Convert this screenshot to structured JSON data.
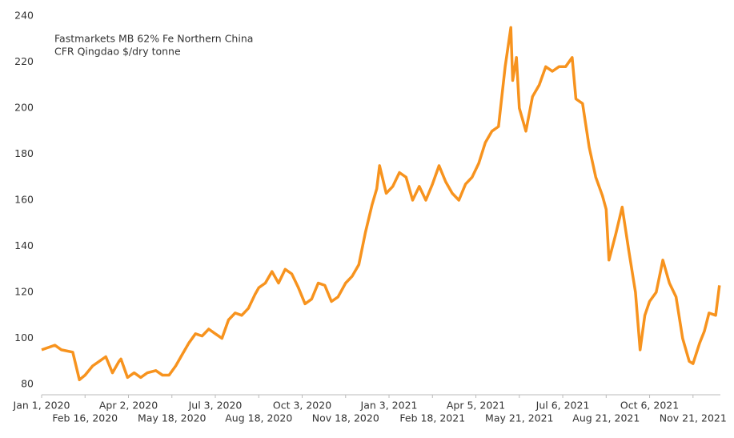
{
  "chart_data": {
    "type": "line",
    "title": "Fastmarkets MB 62% Fe Northern China",
    "subtitle": "CFR Qingdao $/dry tonne",
    "x": [
      "2020-01-01",
      "2020-01-15",
      "2020-01-22",
      "2020-02-03",
      "2020-02-10",
      "2020-02-16",
      "2020-02-24",
      "2020-03-02",
      "2020-03-09",
      "2020-03-16",
      "2020-03-23",
      "2020-03-25",
      "2020-04-01",
      "2020-04-08",
      "2020-04-15",
      "2020-04-22",
      "2020-05-01",
      "2020-05-08",
      "2020-05-15",
      "2020-05-22",
      "2020-05-29",
      "2020-06-05",
      "2020-06-12",
      "2020-06-19",
      "2020-06-26",
      "2020-07-03",
      "2020-07-10",
      "2020-07-17",
      "2020-07-24",
      "2020-07-31",
      "2020-08-07",
      "2020-08-14",
      "2020-08-18",
      "2020-08-25",
      "2020-09-01",
      "2020-09-08",
      "2020-09-15",
      "2020-09-22",
      "2020-09-29",
      "2020-10-06",
      "2020-10-13",
      "2020-10-20",
      "2020-10-27",
      "2020-11-03",
      "2020-11-10",
      "2020-11-18",
      "2020-11-25",
      "2020-12-02",
      "2020-12-09",
      "2020-12-16",
      "2020-12-21",
      "2020-12-24",
      "2020-12-31",
      "2021-01-07",
      "2021-01-14",
      "2021-01-21",
      "2021-01-28",
      "2021-02-04",
      "2021-02-11",
      "2021-02-18",
      "2021-02-25",
      "2021-03-04",
      "2021-03-11",
      "2021-03-18",
      "2021-03-25",
      "2021-04-01",
      "2021-04-08",
      "2021-04-15",
      "2021-04-22",
      "2021-04-29",
      "2021-05-06",
      "2021-05-12",
      "2021-05-14",
      "2021-05-18",
      "2021-05-21",
      "2021-05-28",
      "2021-06-04",
      "2021-06-11",
      "2021-06-18",
      "2021-06-25",
      "2021-07-02",
      "2021-07-09",
      "2021-07-16",
      "2021-07-20",
      "2021-07-27",
      "2021-08-03",
      "2021-08-10",
      "2021-08-17",
      "2021-08-21",
      "2021-08-24",
      "2021-08-31",
      "2021-09-07",
      "2021-09-14",
      "2021-09-21",
      "2021-09-26",
      "2021-10-01",
      "2021-10-06",
      "2021-10-13",
      "2021-10-20",
      "2021-10-27",
      "2021-11-03",
      "2021-11-10",
      "2021-11-17",
      "2021-11-21",
      "2021-11-28",
      "2021-12-03",
      "2021-12-08",
      "2021-12-15",
      "2021-12-19"
    ],
    "series": [
      {
        "color": "#f7931e",
        "values": [
          95,
          97,
          95,
          94,
          82,
          84,
          88,
          90,
          92,
          85,
          90,
          91,
          83,
          85,
          83,
          85,
          86,
          84,
          84,
          88,
          93,
          98,
          102,
          101,
          104,
          102,
          100,
          108,
          111,
          110,
          113,
          119,
          122,
          124,
          129,
          124,
          130,
          128,
          122,
          115,
          117,
          124,
          123,
          116,
          118,
          124,
          127,
          132,
          146,
          158,
          165,
          175,
          163,
          166,
          172,
          170,
          160,
          166,
          160,
          167,
          175,
          168,
          163,
          160,
          167,
          170,
          176,
          185,
          190,
          192,
          218,
          235,
          212,
          222,
          200,
          190,
          205,
          210,
          218,
          216,
          218,
          218,
          222,
          204,
          202,
          183,
          170,
          162,
          156,
          134,
          145,
          157,
          138,
          120,
          95,
          110,
          116,
          120,
          134,
          124,
          118,
          100,
          90,
          89,
          98,
          103,
          111,
          110,
          123
        ]
      }
    ],
    "xlim": [
      "2020-01-01",
      "2021-12-20"
    ],
    "xticks": [
      {
        "value": "2020-01-01",
        "label": "Jan 1, 2020"
      },
      {
        "value": "2020-02-16",
        "label": "Feb 16, 2020"
      },
      {
        "value": "2020-04-02",
        "label": "Apr 2, 2020"
      },
      {
        "value": "2020-05-18",
        "label": "May 18, 2020"
      },
      {
        "value": "2020-07-03",
        "label": "Jul 3, 2020"
      },
      {
        "value": "2020-08-18",
        "label": "Aug 18, 2020"
      },
      {
        "value": "2020-10-03",
        "label": "Oct 3, 2020"
      },
      {
        "value": "2020-11-18",
        "label": "Nov 18, 2020"
      },
      {
        "value": "2021-01-03",
        "label": "Jan 3, 2021"
      },
      {
        "value": "2021-02-18",
        "label": "Feb 18, 2021"
      },
      {
        "value": "2021-04-05",
        "label": "Apr 5, 2021"
      },
      {
        "value": "2021-05-21",
        "label": "May 21, 2021"
      },
      {
        "value": "2021-07-06",
        "label": "Jul 6, 2021"
      },
      {
        "value": "2021-08-21",
        "label": "Aug 21, 2021"
      },
      {
        "value": "2021-10-06",
        "label": "Oct 6, 2021"
      },
      {
        "value": "2021-11-21",
        "label": "Nov 21, 2021"
      }
    ],
    "ylim": [
      80,
      240
    ],
    "yticks": [
      80,
      100,
      120,
      140,
      160,
      180,
      200,
      220,
      240
    ]
  }
}
